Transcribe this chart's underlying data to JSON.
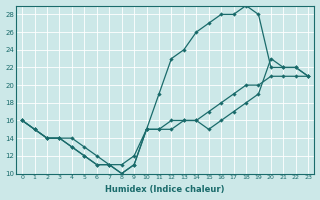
{
  "xlabel": "Humidex (Indice chaleur)",
  "xlim": [
    -0.5,
    23.5
  ],
  "ylim": [
    10,
    29
  ],
  "xticks": [
    0,
    1,
    2,
    3,
    4,
    5,
    6,
    7,
    8,
    9,
    10,
    11,
    12,
    13,
    14,
    15,
    16,
    17,
    18,
    19,
    20,
    21,
    22,
    23
  ],
  "yticks": [
    10,
    12,
    14,
    16,
    18,
    20,
    22,
    24,
    26,
    28
  ],
  "background_color": "#cce8e8",
  "line_color": "#1a6b6b",
  "line1_x": [
    0,
    1,
    2,
    3,
    4,
    5,
    6,
    7,
    8,
    9,
    10,
    11,
    12,
    13,
    14,
    15,
    16,
    17,
    18,
    19,
    20,
    21,
    22,
    23
  ],
  "line1_y": [
    16,
    15,
    14,
    14,
    13,
    12,
    11,
    11,
    10,
    11,
    15,
    19,
    23,
    24,
    26,
    27,
    28,
    28,
    29,
    28,
    22,
    22,
    22,
    21
  ],
  "line2_x": [
    0,
    1,
    2,
    3,
    4,
    5,
    6,
    7,
    8,
    9,
    10,
    11,
    12,
    13,
    14,
    15,
    16,
    17,
    18,
    19,
    20,
    21,
    22,
    23
  ],
  "line2_y": [
    16,
    15,
    14,
    14,
    14,
    13,
    12,
    11,
    11,
    12,
    15,
    15,
    16,
    16,
    16,
    17,
    18,
    19,
    20,
    20,
    21,
    21,
    21,
    21
  ],
  "line3_x": [
    0,
    1,
    2,
    3,
    4,
    5,
    6,
    7,
    8,
    9,
    10,
    11,
    12,
    13,
    14,
    15,
    16,
    17,
    18,
    19,
    20,
    21,
    22,
    23
  ],
  "line3_y": [
    16,
    15,
    14,
    14,
    13,
    12,
    11,
    11,
    10,
    11,
    15,
    15,
    15,
    16,
    16,
    15,
    16,
    17,
    18,
    19,
    23,
    22,
    22,
    21
  ]
}
